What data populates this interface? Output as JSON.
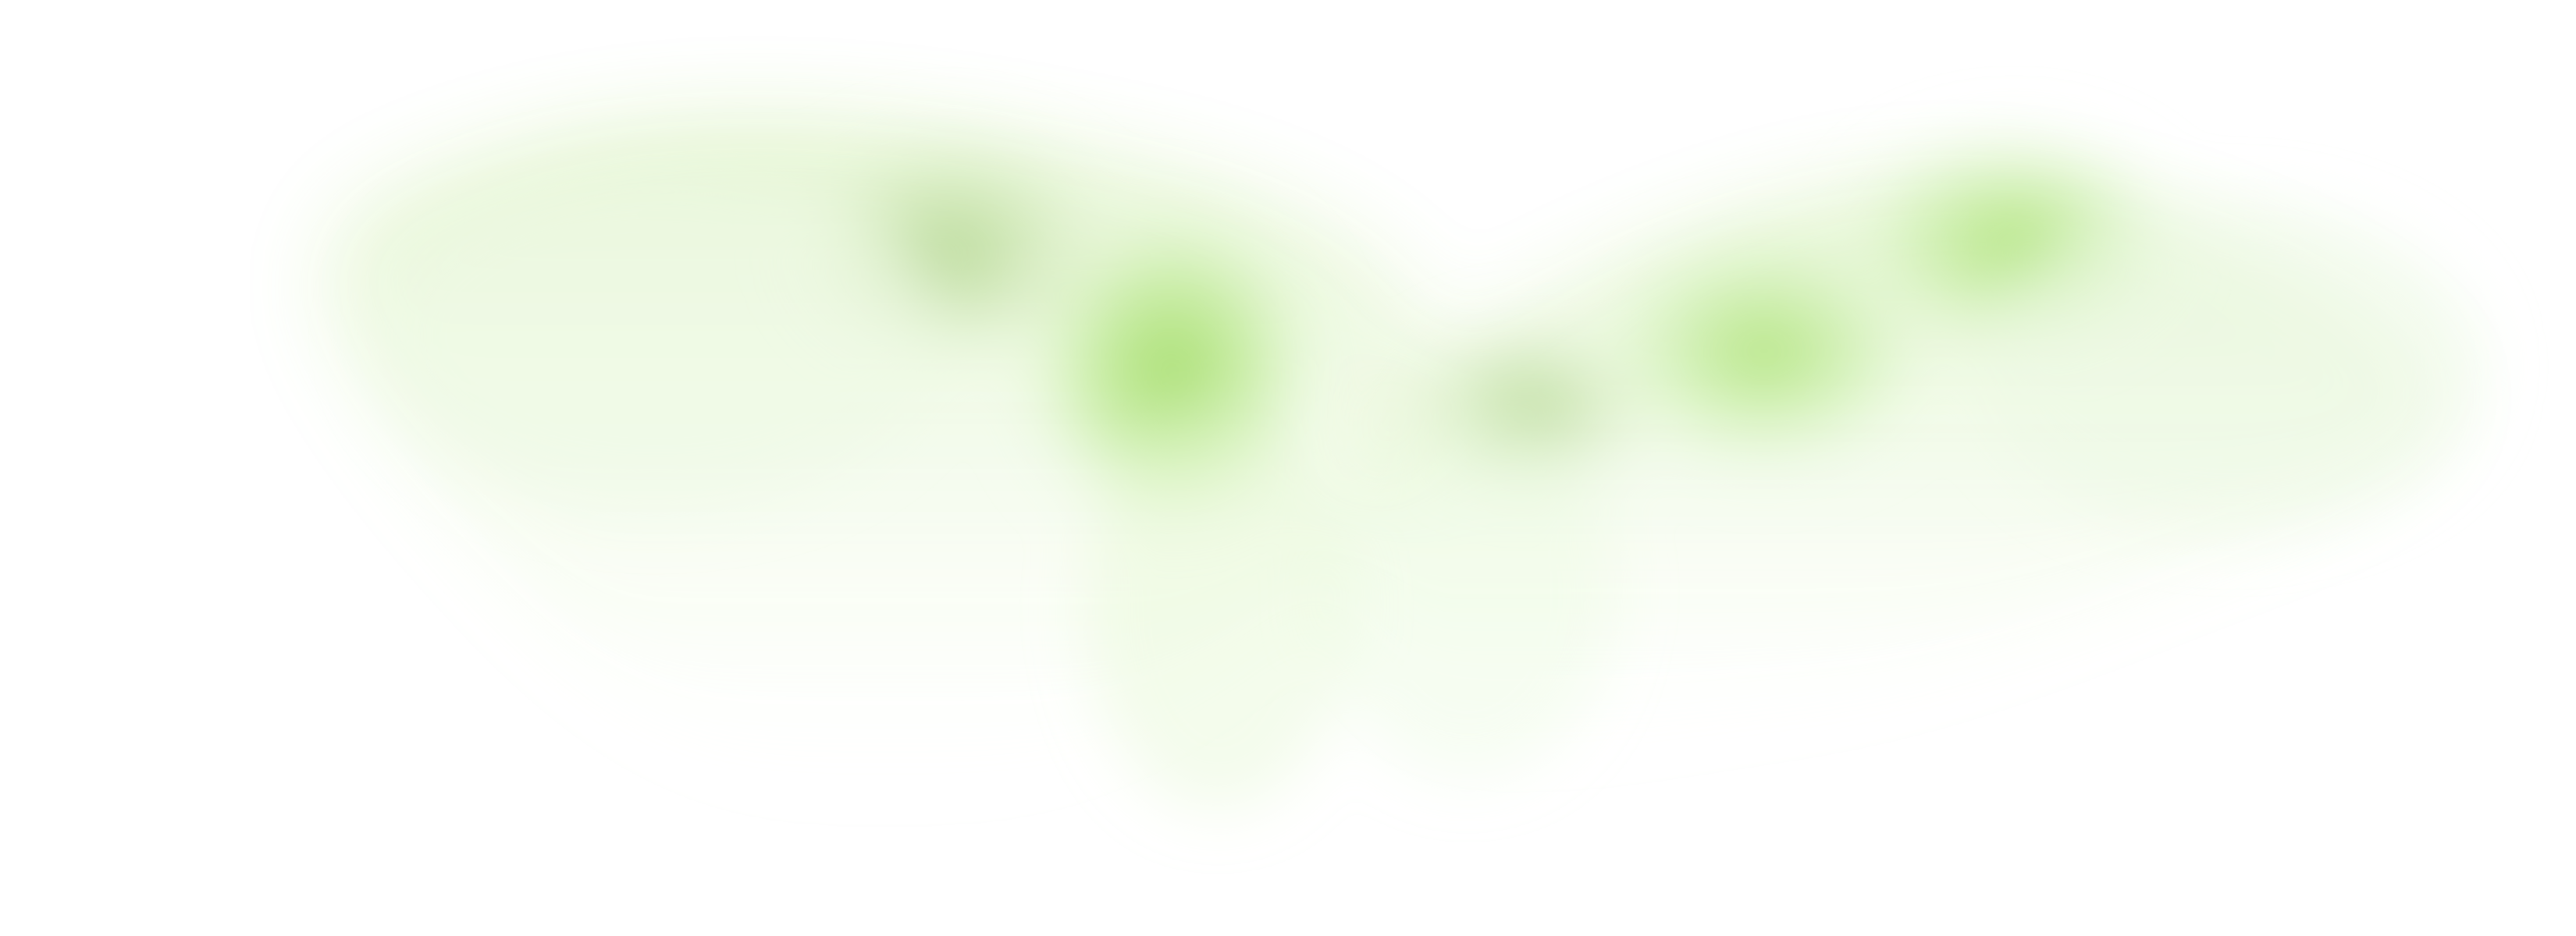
{
  "image": {
    "description_visible": false,
    "colors": {
      "background": "#ffffff",
      "green_light": "#c9efa3",
      "green_mid": "#a8e06a",
      "green_strong": "#97d85a",
      "green_olive": "#a9cf82"
    }
  }
}
